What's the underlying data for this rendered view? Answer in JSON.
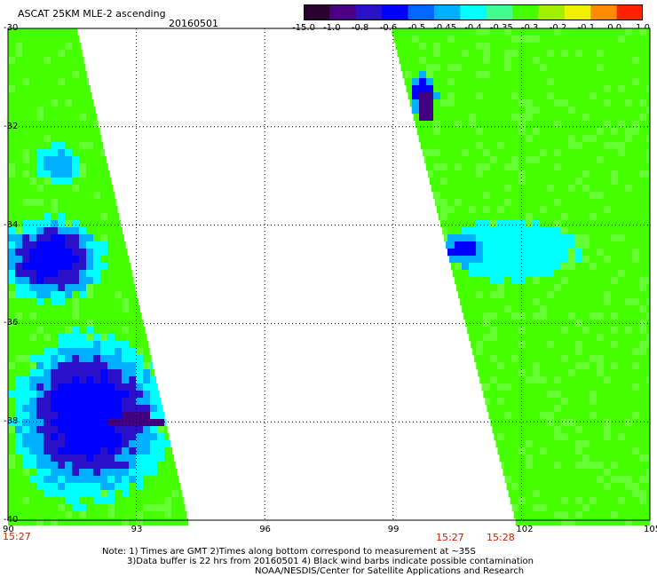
{
  "header": {
    "title": "ASCAT 25KM MLE-2 ascending",
    "date": "20160501"
  },
  "colorbar": {
    "labels": [
      "-15.0",
      "-1.0",
      "-0.8",
      "-0.6",
      "-0.5",
      "-0.45",
      "-0.4",
      "-0.35",
      "-0.3",
      "-0.2",
      "-0.1",
      "0.0",
      "1.0"
    ],
    "colors": [
      "#2a0030",
      "#4a0080",
      "#2a10c8",
      "#0000ff",
      "#0066ff",
      "#00b0ff",
      "#00ffff",
      "#40ff90",
      "#44ff00",
      "#a0f000",
      "#f0f000",
      "#ff8c00",
      "#ff2000"
    ]
  },
  "map": {
    "lon_ticks": [
      "90",
      "93",
      "96",
      "99",
      "102",
      "105"
    ],
    "lat_ticks": [
      "-30",
      "-32",
      "-34",
      "-36",
      "-38",
      "-40"
    ],
    "lon_range": [
      90,
      105
    ],
    "lat_range": [
      -30,
      -40
    ],
    "swath_colors": {
      "green": "#44ff00",
      "light_green": "#66ff33",
      "cyan": "#00ffff",
      "light_blue": "#00b0ff",
      "blue": "#0000ff",
      "dark_blue": "#2a10c8",
      "purple": "#400080"
    }
  },
  "time_labels": {
    "left": "15:27",
    "right_a": "15:27",
    "right_b": "15:28"
  },
  "notes": {
    "line1": "Note: 1) Times are GMT 2)Times along bottom correspond to measurement at ~35S",
    "line2": "3)Data buffer is 22 hrs from 20160501 4) Black wind barbs indicate possible contamination",
    "line3": "NOAA/NESDIS/Center for Satellite Applications and Research"
  }
}
